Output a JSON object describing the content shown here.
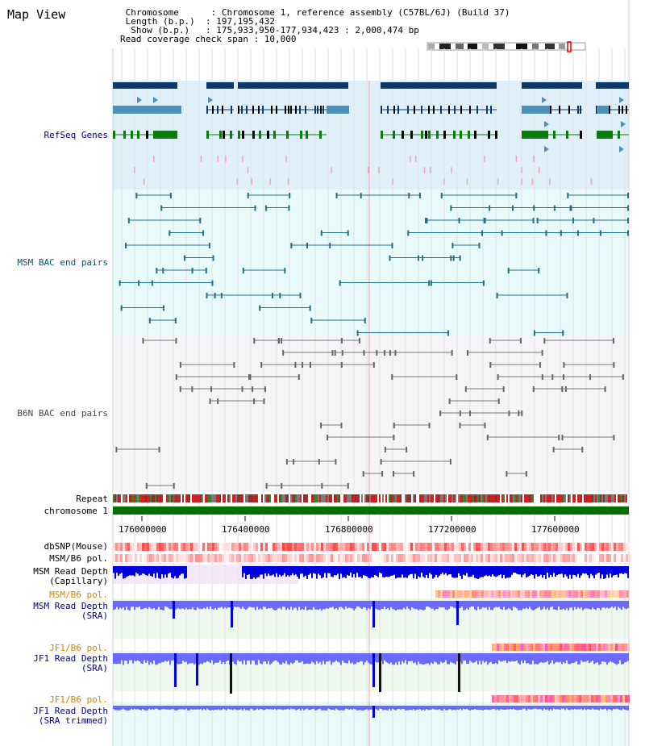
{
  "view_title": "Map View",
  "header": {
    "chromosome": " Chromosome      : Chromosome 1, reference assembly (C57BL/6J) (Build 37)",
    "length": " Length (b.p.)  : 197,195,432",
    "show": "  Show (b.p.)   : 175,933,950-177,934,423 : 2,000,474 bp",
    "coverage": "Read coverage check span : 10,000"
  },
  "tracks": {
    "refseq": "RefSeq Genes",
    "msm_bac": "MSM BAC end pairs",
    "b6n_bac": "B6N BAC end pairs",
    "repeat": "Repeat",
    "chromosome": "chromosome 1",
    "dbsnp": "dbSNP(Mouse)",
    "msm_b6_pol": "MSM/B6 pol.",
    "msm_depth_cap_1": "MSM Read Depth",
    "msm_depth_cap_2": "(Capillary)",
    "msm_b6_pol_2": "MSM/B6 pol.",
    "msm_depth_sra_1": "MSM Read Depth",
    "msm_depth_sra_2": "(SRA)",
    "jf1_b6_pol_1": "JF1/B6 pol.",
    "jf1_depth_sra_1": "JF1 Read Depth",
    "jf1_depth_sra_2": "(SRA)",
    "jf1_b6_pol_2": "JF1/B6 pol.",
    "jf1_depth_trim_1": "JF1 Read Depth",
    "jf1_depth_trim_2": "(SRA trimmed)"
  },
  "axis_ticks": [
    "176000000",
    "176400000",
    "176800000",
    "177200000",
    "177600000"
  ],
  "colors": {
    "gene_dark": "#0b3a6b",
    "gene_light": "#4a90b8",
    "gene_green": "#0a7a0a",
    "chromosome": "#007000",
    "depth_blue": "#0000dd",
    "depth_light": "#6a6aff",
    "snp_red": "#ff3030"
  }
}
